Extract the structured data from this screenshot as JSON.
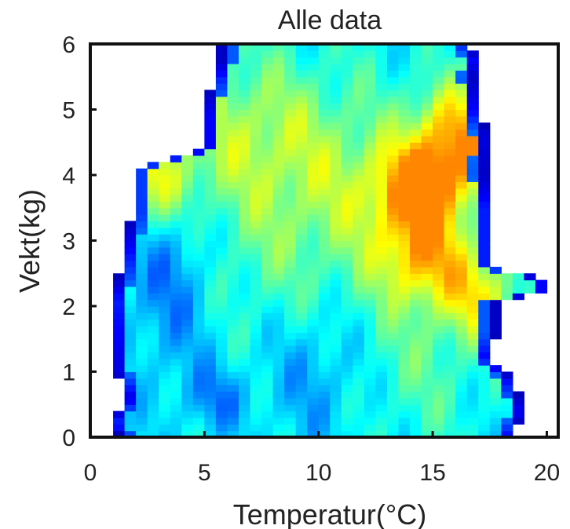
{
  "chart_data": {
    "type": "heatmap",
    "title": "Alle data",
    "xlabel": "Temperatur(°C)",
    "ylabel": "Vekt(kg)",
    "xlim": [
      0,
      20.5
    ],
    "ylim": [
      0,
      6
    ],
    "x_ticks": [
      "0",
      "5",
      "10",
      "15",
      "20"
    ],
    "y_ticks": [
      "0",
      "1",
      "2",
      "3",
      "4",
      "5",
      "6"
    ],
    "grid": false,
    "colormap": "jet",
    "colormap_stops": [
      "#00008f",
      "#0000ff",
      "#0080ff",
      "#00ffff",
      "#80ff80",
      "#ffff00",
      "#ff8000",
      "#ff0000"
    ],
    "frame_color": "#111111",
    "hotspots": [
      {
        "t": 14.2,
        "w": 3.8,
        "value": 0.78
      },
      {
        "t": 16.0,
        "w": 4.75,
        "value": 0.72
      },
      {
        "t": 14.6,
        "w": 2.75,
        "value": 0.72
      },
      {
        "t": 17.0,
        "w": 2.15,
        "value": 0.68
      },
      {
        "t": 16.3,
        "w": 4.0,
        "value": 0.62
      },
      {
        "t": 2.7,
        "w": 3.9,
        "value": 0.68
      }
    ]
  }
}
